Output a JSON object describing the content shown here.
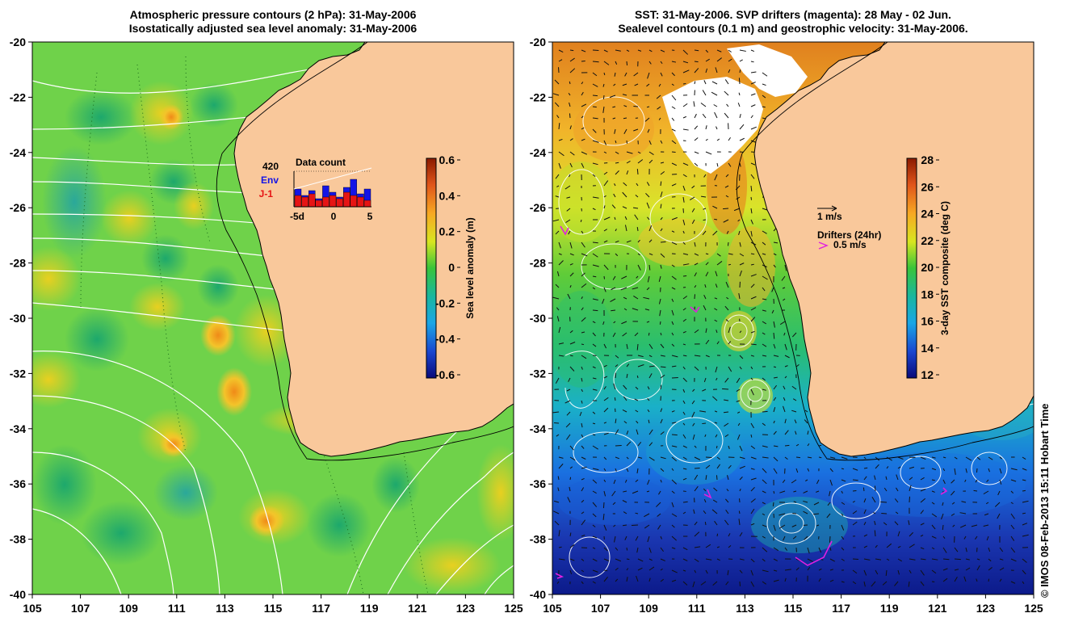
{
  "left_panel": {
    "title_line1": "Atmospheric pressure contours (2 hPa): 31-May-2006",
    "title_line2": "Isostatically adjusted sea level anomaly: 31-May-2006",
    "colorbar": {
      "label": "Sea level anomaly (m)",
      "ticks": [
        "0.6",
        "0.4",
        "0.2",
        "0",
        "-0.2",
        "-0.4",
        "-0.6"
      ]
    },
    "data_count": {
      "title": "Data count",
      "max_label": "420",
      "env_label": "Env",
      "j1_label": "J-1",
      "axis_labels": [
        "-5d",
        "0",
        "5"
      ],
      "env_color": "#1414e6",
      "j1_color": "#e61414"
    }
  },
  "right_panel": {
    "title_line1": "SST: 31-May-2006. SVP drifters (magenta): 28 May - 02 Jun.",
    "title_line2": "Sealevel contours (0.1 m) and geostrophic velocity: 31-May-2006.",
    "colorbar": {
      "label": "3-day SST composite (deg C)",
      "ticks": [
        "28",
        "26",
        "24",
        "22",
        "20",
        "18",
        "16",
        "14",
        "12"
      ]
    },
    "velocity_legend": "1 m/s",
    "drifter_legend_title": "Drifters (24hr)",
    "drifter_legend_speed": "0.5 m/s",
    "drifter_color": "#e020e0"
  },
  "axes": {
    "lat_ticks": [
      "-20",
      "-22",
      "-24",
      "-26",
      "-28",
      "-30",
      "-32",
      "-34",
      "-36",
      "-38",
      "-40"
    ],
    "lon_ticks": [
      "105",
      "107",
      "109",
      "111",
      "113",
      "115",
      "117",
      "119",
      "121",
      "123",
      "125"
    ],
    "lat_range": [
      -40,
      -20
    ],
    "lon_range": [
      105,
      125
    ]
  },
  "colors": {
    "land": "#f9c89b",
    "ocean_base_left": "#6fd24a",
    "contour": "#ffffff"
  },
  "credit": "© IMOS 08-Feb-2013 15:11 Hobart Time"
}
